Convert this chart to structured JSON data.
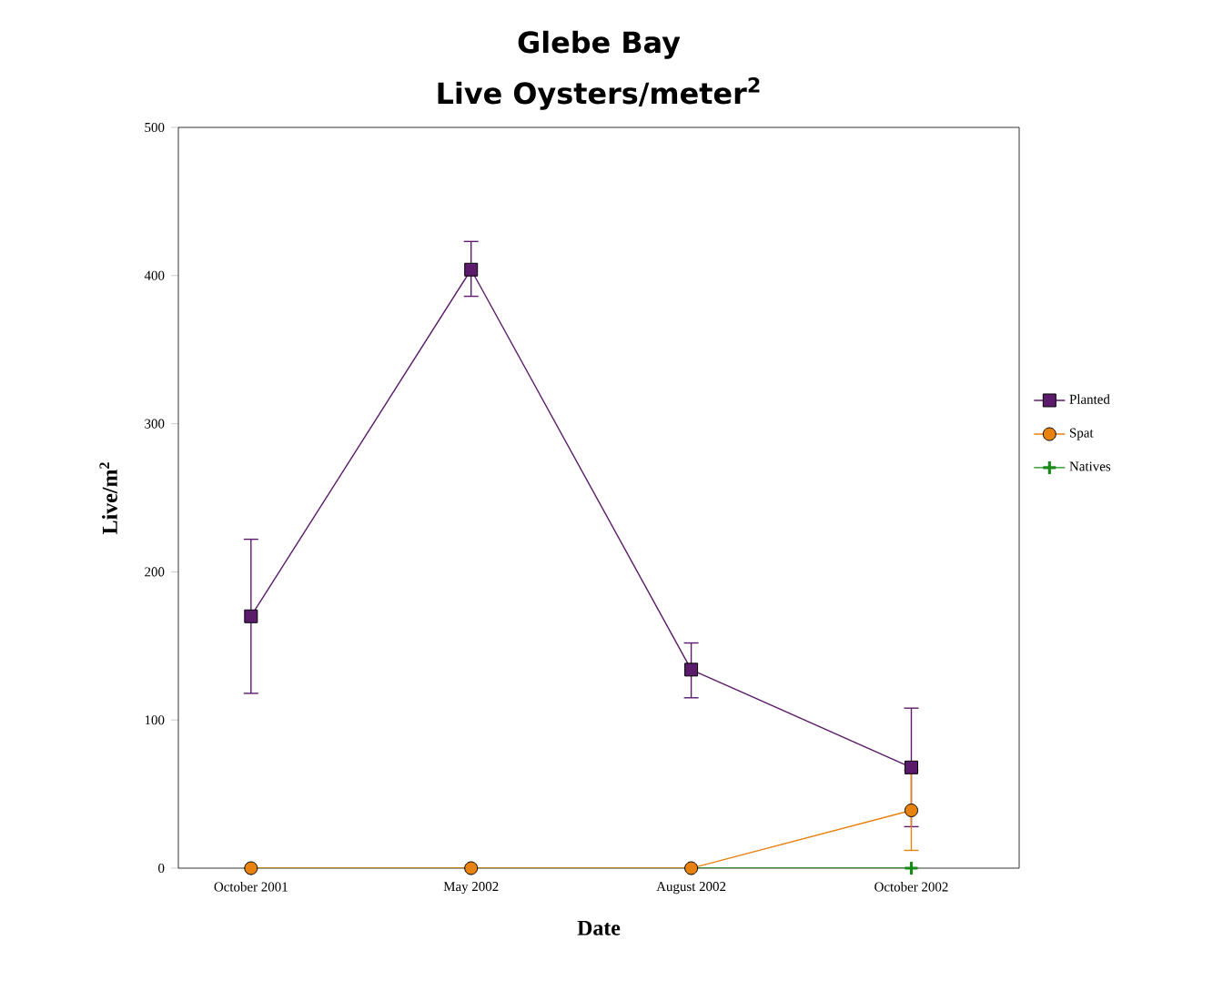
{
  "chart_data": {
    "type": "line",
    "title": "Glebe Bay",
    "subtitle": "Live Oysters/meter$^{2}$",
    "xlabel": "Date",
    "ylabel": "Live/m$^{2}$",
    "categories": [
      "October 2001",
      "May 2002",
      "August 2002",
      "October 2002"
    ],
    "series": [
      {
        "name": "Planted",
        "color": "#5c1a6b",
        "marker": "square",
        "values": [
          170,
          404,
          134,
          68
        ],
        "errors": [
          [
            118,
            222
          ],
          [
            386,
            423
          ],
          [
            115,
            152
          ],
          [
            28,
            108
          ]
        ]
      },
      {
        "name": "Spat",
        "color": "#e8820e",
        "marker": "circle",
        "values": [
          0,
          0,
          0,
          39
        ],
        "errors": [
          null,
          null,
          null,
          [
            12,
            66
          ]
        ]
      },
      {
        "name": "Natives",
        "color": "#1a8a1a",
        "marker": "cross",
        "values": [
          0,
          0,
          0,
          0
        ]
      }
    ],
    "ylim": [
      0,
      500
    ],
    "yticks": [
      0,
      100,
      200,
      300,
      400,
      500
    ],
    "legend": "right",
    "grid": false
  }
}
